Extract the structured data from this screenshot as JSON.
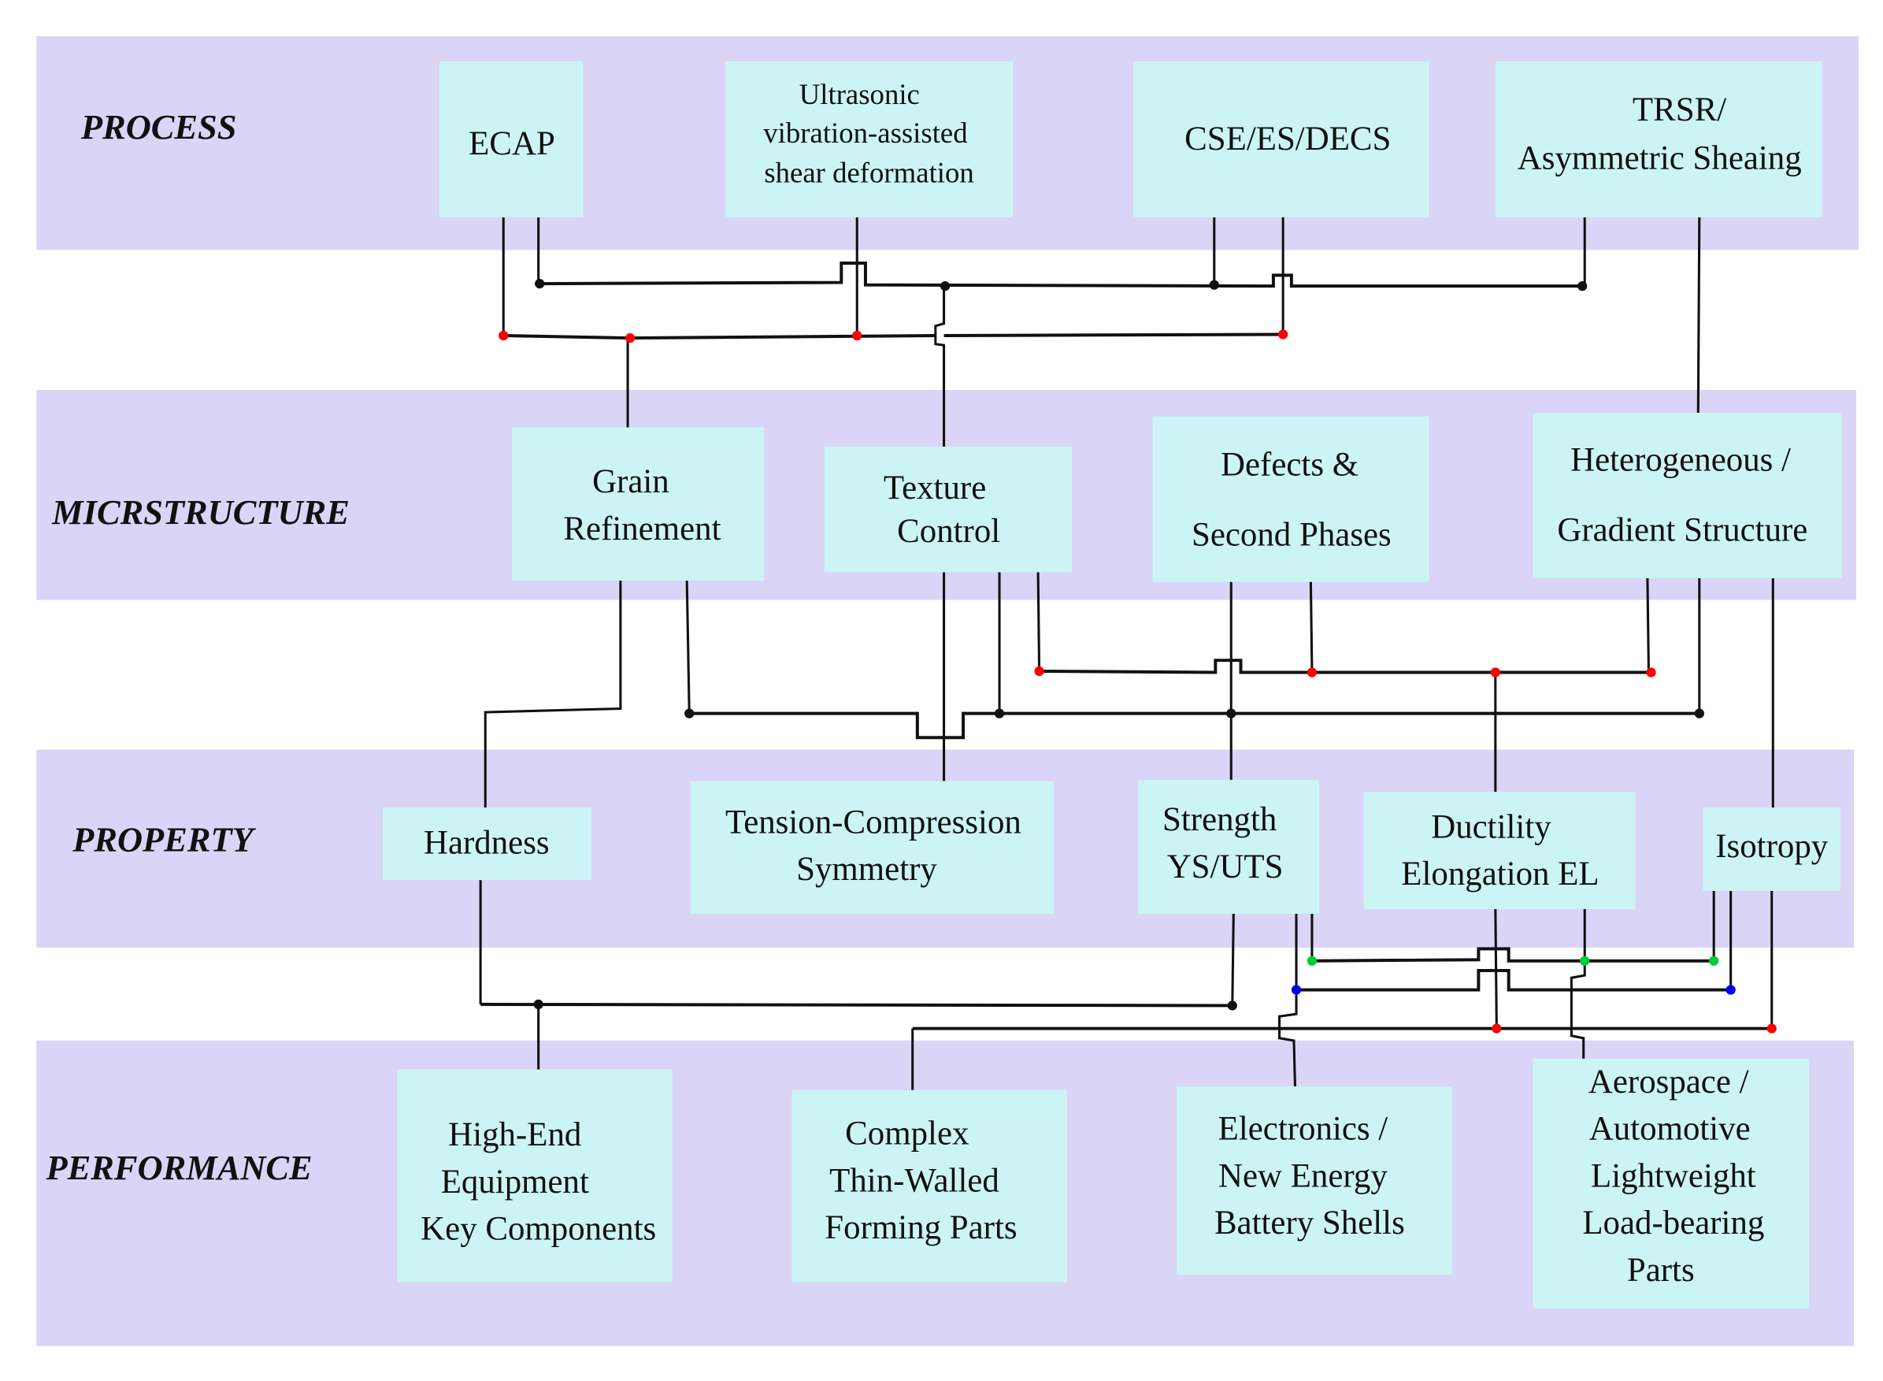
{
  "layers": {
    "process": "PROCESS",
    "microstructure": "MICRSTRUCTURE",
    "property": "PROPERTY",
    "performance": "PERFORMANCE"
  },
  "process": {
    "ecap": [
      "ECAP"
    ],
    "ultrasonic": [
      "Ultrasonic",
      "vibration-assisted",
      "shear deformation"
    ],
    "cse": [
      "CSE/ES/DECS"
    ],
    "trsr": [
      "TRSR/",
      "Asymmetric Sheaing"
    ]
  },
  "microstructure": {
    "grain": [
      "Grain",
      "Refinement"
    ],
    "texture": [
      "Texture",
      "Control"
    ],
    "defects": [
      "Defects &",
      "Second Phases"
    ],
    "hetero": [
      "Heterogeneous /",
      "Gradient Structure"
    ]
  },
  "property": {
    "hardness": [
      "Hardness"
    ],
    "tension": [
      "Tension-Compression",
      "Symmetry"
    ],
    "strength": [
      "Strength",
      "YS/UTS"
    ],
    "ductility": [
      "Ductility",
      "Elongation EL"
    ],
    "isotropy": [
      "Isotropy"
    ]
  },
  "performance": {
    "highend": [
      "High-End",
      "Equipment",
      "Key Components"
    ],
    "complex": [
      "Complex",
      "Thin-Walled",
      "Forming Parts"
    ],
    "electronics": [
      "Electronics /",
      "New Energy",
      "Battery Shells"
    ],
    "aerospace": [
      "Aerospace /",
      "Automotive",
      "Lightweight",
      "Load-bearing",
      "Parts"
    ]
  },
  "colors": {
    "band": "#dad5f7",
    "box": "#ccf4f5",
    "dot_black": "#111111",
    "dot_red": "#ff0000",
    "dot_green": "#00cc33",
    "dot_blue": "#0000ee"
  }
}
